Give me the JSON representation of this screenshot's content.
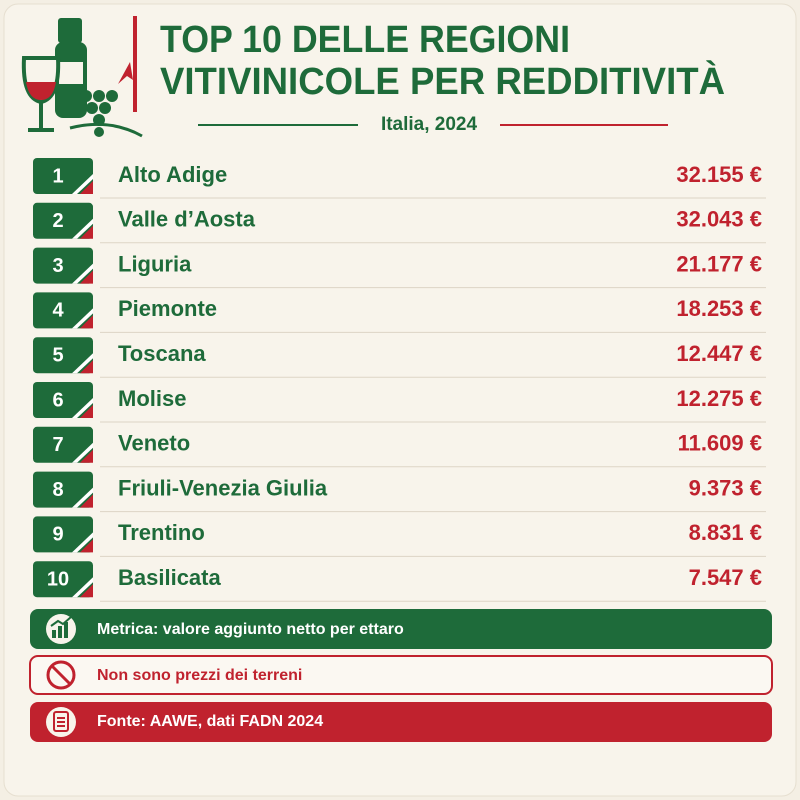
{
  "header": {
    "title": [
      "TOP 10 DELLE REGIONI",
      "VITIVINICOLE PER REDDITIVITÀ"
    ],
    "subtitle": "Italia, 2024"
  },
  "table": {
    "rows": [
      {
        "rank": "1",
        "region": "Alto Adige",
        "value": "32.155 €"
      },
      {
        "rank": "2",
        "region": "Valle d’Aosta",
        "value": "32.043 €"
      },
      {
        "rank": "3",
        "region": "Liguria",
        "value": "21.177 €"
      },
      {
        "rank": "4",
        "region": "Piemonte",
        "value": "18.253 €"
      },
      {
        "rank": "5",
        "region": "Toscana",
        "value": "12.447 €"
      },
      {
        "rank": "6",
        "region": "Molise",
        "value": "12.275 €"
      },
      {
        "rank": "7",
        "region": "Veneto",
        "value": "11.609 €"
      },
      {
        "rank": "8",
        "region": "Friuli-Venezia Giulia",
        "value": "9.373 €"
      },
      {
        "rank": "9",
        "region": "Trentino",
        "value": "8.831 €"
      },
      {
        "rank": "10",
        "region": "Basilicata",
        "value": "7.547 €"
      }
    ]
  },
  "notes": [
    "Metrica: valore aggiunto netto per ettaro",
    "Non sono prezzi dei terreni",
    "Fonte: AAWE, dati FADN 2024"
  ]
}
